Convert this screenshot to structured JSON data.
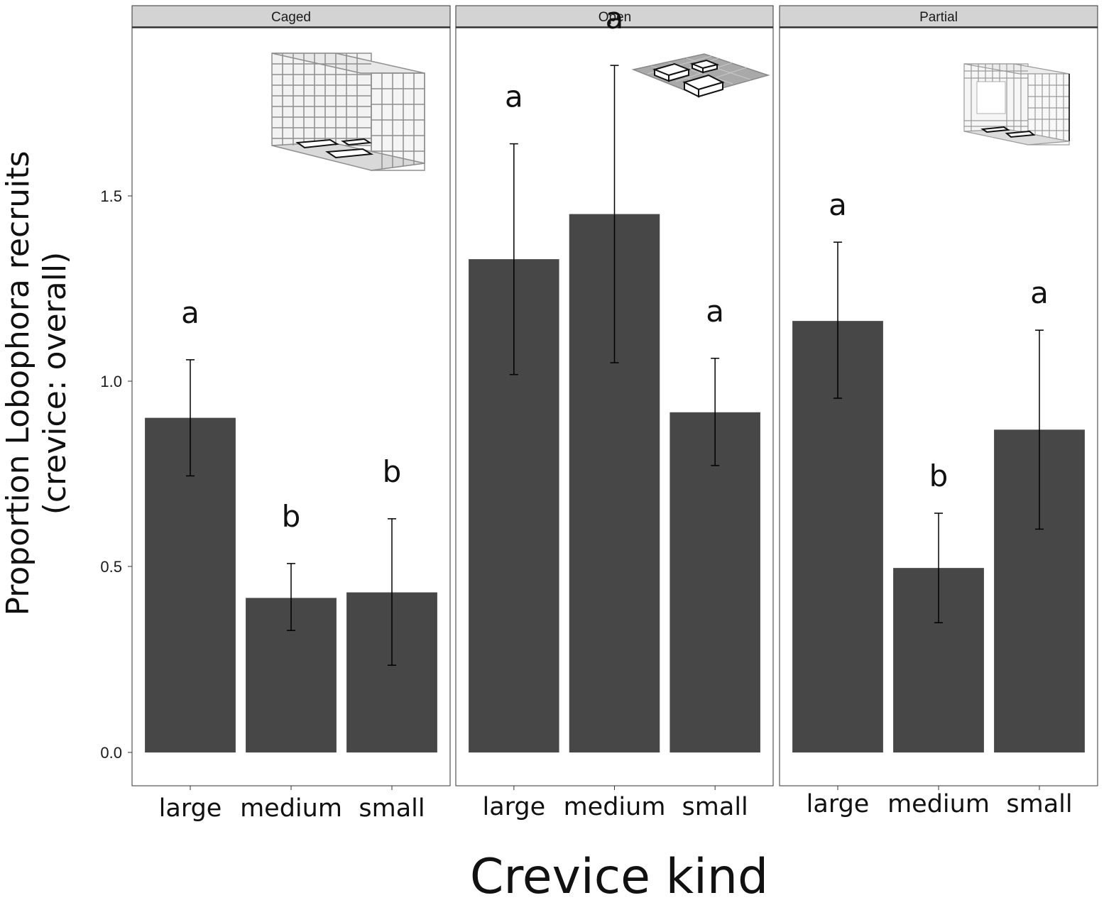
{
  "chart_data": {
    "type": "bar",
    "facets": [
      {
        "label": "Caged",
        "icon": "closed-cage-icon",
        "categories": [
          "large",
          "medium",
          "small"
        ],
        "values": [
          0.905,
          0.418,
          0.433
        ],
        "error_low": [
          0.748,
          0.33,
          0.236
        ],
        "error_high": [
          1.062,
          0.511,
          0.632
        ],
        "significance": [
          "a",
          "b",
          "b"
        ]
      },
      {
        "label": "Open",
        "icon": "open-plot-icon",
        "categories": [
          "large",
          "medium",
          "small"
        ],
        "values": [
          1.334,
          1.456,
          0.92
        ],
        "error_low": [
          1.022,
          1.054,
          0.776
        ],
        "error_high": [
          1.646,
          1.858,
          1.066
        ],
        "significance": [
          "a",
          "a",
          "a"
        ]
      },
      {
        "label": "Partial",
        "icon": "partial-cage-icon",
        "categories": [
          "large",
          "medium",
          "small"
        ],
        "values": [
          1.167,
          0.499,
          0.873
        ],
        "error_low": [
          0.958,
          0.351,
          0.604
        ],
        "error_high": [
          1.38,
          0.647,
          1.142
        ],
        "significance": [
          "a",
          "b",
          "a"
        ]
      }
    ],
    "ylabel": [
      "Proportion Lobophora recruits",
      "(crevice: overall)"
    ],
    "xlabel": "Crevice kind",
    "y_ticks": [
      "0.0",
      "0.5",
      "1.0",
      "1.5"
    ],
    "ylim": [
      -0.09,
      1.96
    ],
    "bar_color": "#474747",
    "strip_color": "#d3d3d3",
    "grid": false
  }
}
